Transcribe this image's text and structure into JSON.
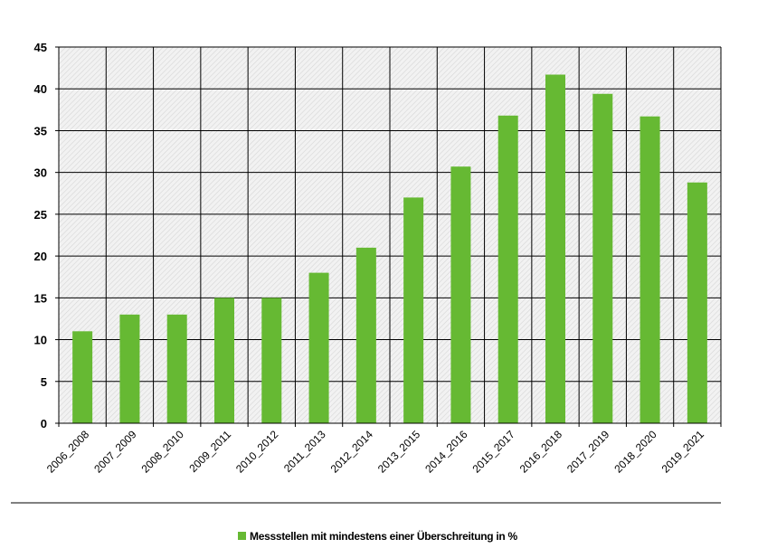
{
  "chart_data": {
    "type": "bar",
    "categories": [
      "2006_2008",
      "2007_2009",
      "2008_2010",
      "2009_2011",
      "2010_2012",
      "2011_2013",
      "2012_2014",
      "2013_2015",
      "2014_2016",
      "2015_2017",
      "2016_2018",
      "2017_2019",
      "2018_2020",
      "2019_2021"
    ],
    "series": [
      {
        "name": "Messstellen mit mindestens einer Überschreitung in %",
        "values": [
          11,
          13,
          13,
          15,
          15,
          18,
          21,
          27,
          30.7,
          36.8,
          41.7,
          39.4,
          36.7,
          28.8
        ]
      }
    ],
    "title": "",
    "xlabel": "",
    "ylabel": "",
    "ylim": [
      0,
      45
    ],
    "yticks": [
      0,
      5,
      10,
      15,
      20,
      25,
      30,
      35,
      40,
      45
    ],
    "grid": true,
    "legend_position": "bottom-center",
    "bar_color": "#66b933",
    "plot_background": "hatched-grey"
  }
}
